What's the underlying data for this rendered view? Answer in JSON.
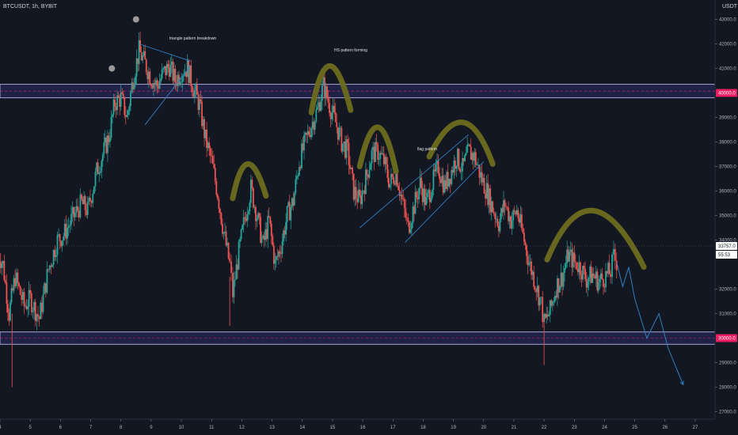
{
  "header": {
    "symbol": "BTCUSDT, 1h, BYBIT",
    "currency": "USDT"
  },
  "annotations": {
    "triangle": "triangle pattern breakdown",
    "hs": "HS pattern forming",
    "flag": "flag pattern"
  },
  "price_tags": {
    "upper_zone": "40000.0",
    "current": "33757.0",
    "countdown": "55:53",
    "lower_zone": "30000.0"
  },
  "colors": {
    "background": "#131722",
    "up": "#26a69a",
    "down": "#ef5350",
    "zone": "#3f3f9f",
    "zone_tag": "#e91e63",
    "arc": "#6b6b1e",
    "line": "#2f7fc1"
  },
  "chart_data": {
    "type": "candlestick",
    "title": "BTCUSDT, 1h, BYBIT",
    "ylabel": "USDT",
    "ylim": [
      26700,
      44300
    ],
    "x_ticks": [
      "4",
      "5",
      "6",
      "7",
      "8",
      "9",
      "10",
      "11",
      "12",
      "13",
      "14",
      "15",
      "16",
      "17",
      "18",
      "19",
      "20",
      "21",
      "22",
      "23",
      "24",
      "25",
      "26",
      "27"
    ],
    "y_ticks": [
      "27000.0",
      "28000.0",
      "29000.0",
      "31000.0",
      "32000.0",
      "34000.0",
      "35000.0",
      "36000.0",
      "37000.0",
      "38000.0",
      "39000.0",
      "41000.0",
      "42000.0",
      "43000.0"
    ],
    "grid": false,
    "zones": [
      {
        "name": "resistance",
        "from": 39800,
        "to": 40350,
        "label": "40000.0"
      },
      {
        "name": "support",
        "from": 29750,
        "to": 30250,
        "label": "30000.0"
      }
    ],
    "current_price": 33757,
    "price_path": [
      [
        3.9,
        33600
      ],
      [
        4.1,
        33000
      ],
      [
        4.3,
        31000
      ],
      [
        4.5,
        32500
      ],
      [
        4.8,
        31300
      ],
      [
        5.0,
        31600
      ],
      [
        5.3,
        30800
      ],
      [
        5.6,
        32800
      ],
      [
        5.9,
        34000
      ],
      [
        6.1,
        34200
      ],
      [
        6.4,
        34900
      ],
      [
        6.7,
        35500
      ],
      [
        6.9,
        35200
      ],
      [
        7.2,
        36800
      ],
      [
        7.4,
        37500
      ],
      [
        7.6,
        38200
      ],
      [
        7.8,
        39600
      ],
      [
        8.0,
        39800
      ],
      [
        8.2,
        39000
      ],
      [
        8.4,
        40600
      ],
      [
        8.6,
        41700
      ],
      [
        8.8,
        41200
      ],
      [
        9.0,
        40600
      ],
      [
        9.2,
        40300
      ],
      [
        9.4,
        40800
      ],
      [
        9.6,
        41100
      ],
      [
        9.8,
        40500
      ],
      [
        10.0,
        40900
      ],
      [
        10.2,
        41000
      ],
      [
        10.4,
        40200
      ],
      [
        10.6,
        39500
      ],
      [
        10.8,
        38100
      ],
      [
        11.0,
        37200
      ],
      [
        11.2,
        35900
      ],
      [
        11.4,
        34300
      ],
      [
        11.6,
        33000
      ],
      [
        11.7,
        31800
      ],
      [
        11.9,
        33500
      ],
      [
        12.1,
        34900
      ],
      [
        12.3,
        36100
      ],
      [
        12.5,
        35000
      ],
      [
        12.7,
        33800
      ],
      [
        12.9,
        34800
      ],
      [
        13.1,
        33000
      ],
      [
        13.3,
        33800
      ],
      [
        13.5,
        35000
      ],
      [
        13.7,
        35600
      ],
      [
        13.9,
        37200
      ],
      [
        14.1,
        38000
      ],
      [
        14.3,
        38700
      ],
      [
        14.5,
        39300
      ],
      [
        14.7,
        40300
      ],
      [
        14.9,
        39500
      ],
      [
        15.1,
        38800
      ],
      [
        15.3,
        38000
      ],
      [
        15.5,
        37600
      ],
      [
        15.7,
        36000
      ],
      [
        15.9,
        35600
      ],
      [
        16.1,
        36500
      ],
      [
        16.3,
        37500
      ],
      [
        16.5,
        37600
      ],
      [
        16.7,
        37200
      ],
      [
        16.9,
        36300
      ],
      [
        17.1,
        36800
      ],
      [
        17.3,
        35600
      ],
      [
        17.5,
        34500
      ],
      [
        17.7,
        35400
      ],
      [
        17.9,
        36300
      ],
      [
        18.1,
        35500
      ],
      [
        18.3,
        36300
      ],
      [
        18.5,
        37000
      ],
      [
        18.7,
        36200
      ],
      [
        18.9,
        36700
      ],
      [
        19.1,
        37400
      ],
      [
        19.3,
        36900
      ],
      [
        19.5,
        37600
      ],
      [
        19.7,
        37400
      ],
      [
        19.9,
        36600
      ],
      [
        20.1,
        36000
      ],
      [
        20.3,
        35300
      ],
      [
        20.5,
        34700
      ],
      [
        20.7,
        35500
      ],
      [
        20.9,
        34800
      ],
      [
        21.1,
        35200
      ],
      [
        21.3,
        34200
      ],
      [
        21.5,
        33100
      ],
      [
        21.7,
        32300
      ],
      [
        21.9,
        31400
      ],
      [
        22.0,
        30600
      ],
      [
        22.2,
        31100
      ],
      [
        22.4,
        32100
      ],
      [
        22.6,
        32500
      ],
      [
        22.8,
        33400
      ],
      [
        23.0,
        33100
      ],
      [
        23.2,
        32900
      ],
      [
        23.4,
        32400
      ],
      [
        23.6,
        32600
      ],
      [
        23.8,
        32300
      ],
      [
        24.0,
        32500
      ],
      [
        24.2,
        32700
      ],
      [
        24.3,
        33300
      ],
      [
        24.4,
        33100
      ]
    ],
    "projection": [
      [
        24.4,
        33100
      ],
      [
        24.6,
        32100
      ],
      [
        24.8,
        32900
      ],
      [
        25.0,
        31600
      ],
      [
        25.4,
        30000
      ],
      [
        25.8,
        31000
      ],
      [
        26.1,
        29600
      ],
      [
        26.6,
        28100
      ]
    ],
    "trendlines": [
      {
        "name": "triangle-top",
        "points": [
          [
            8.6,
            42000
          ],
          [
            10.3,
            41300
          ]
        ]
      },
      {
        "name": "triangle-bottom",
        "points": [
          [
            8.8,
            38700
          ],
          [
            10.3,
            41100
          ]
        ]
      },
      {
        "name": "flag-bottom",
        "points": [
          [
            15.9,
            34500
          ],
          [
            19.5,
            38300
          ]
        ]
      },
      {
        "name": "flag-lower",
        "points": [
          [
            17.4,
            33900
          ],
          [
            20.0,
            37200
          ]
        ]
      }
    ],
    "arcs": [
      {
        "name": "left-shoulder-small",
        "points": [
          [
            11.7,
            35700
          ],
          [
            12.2,
            37100
          ],
          [
            12.8,
            35800
          ]
        ]
      },
      {
        "name": "head",
        "points": [
          [
            14.3,
            39200
          ],
          [
            14.9,
            41100
          ],
          [
            15.6,
            39300
          ]
        ]
      },
      {
        "name": "right-shoulder",
        "points": [
          [
            15.9,
            37000
          ],
          [
            16.5,
            38600
          ],
          [
            17.1,
            36800
          ]
        ]
      },
      {
        "name": "flag-top",
        "points": [
          [
            18.2,
            37400
          ],
          [
            19.3,
            38800
          ],
          [
            20.3,
            37100
          ]
        ]
      },
      {
        "name": "rounded-top",
        "points": [
          [
            22.1,
            33200
          ],
          [
            23.6,
            35200
          ],
          [
            25.3,
            32900
          ]
        ]
      }
    ],
    "markers": [
      {
        "name": "peak-marker-1",
        "x": 7.7,
        "y": 41000
      },
      {
        "name": "peak-marker-2",
        "x": 8.5,
        "y": 43000
      }
    ]
  }
}
